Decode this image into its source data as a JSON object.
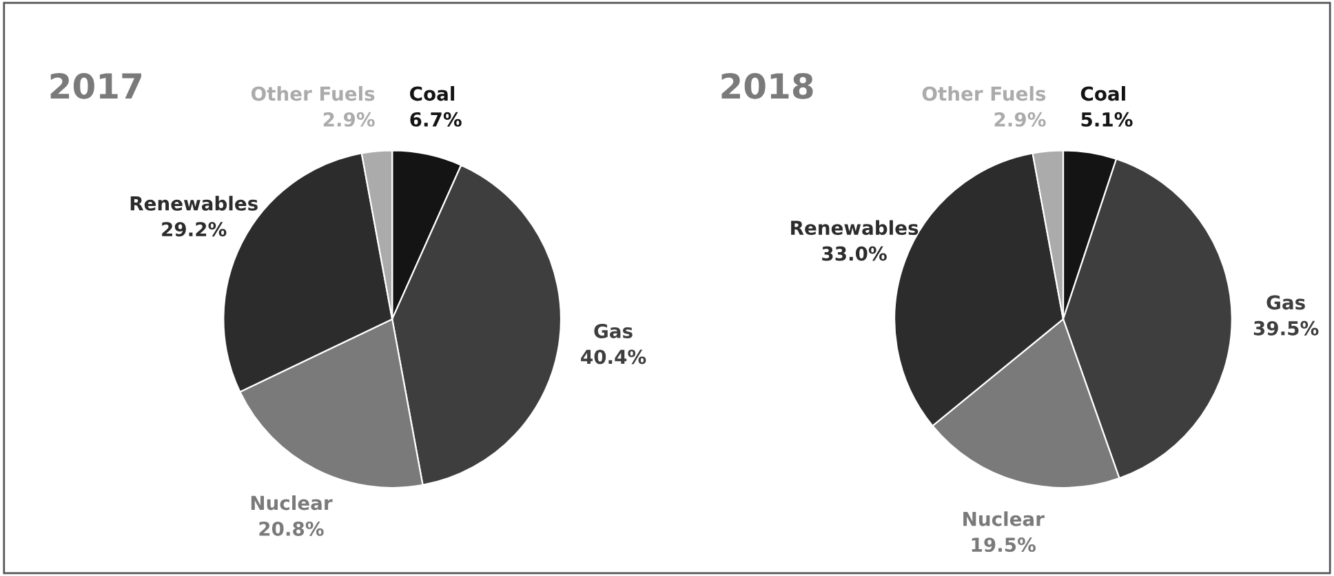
{
  "chart_data": [
    {
      "type": "pie",
      "title": "2017",
      "categories": [
        "Coal",
        "Gas",
        "Nuclear",
        "Renewables",
        "Other Fuels"
      ],
      "values": [
        6.7,
        40.4,
        20.8,
        29.2,
        2.9
      ],
      "value_labels": [
        "6.7%",
        "40.4%",
        "20.8%",
        "29.2%",
        "2.9%"
      ],
      "colors": [
        "#141414",
        "#3e3e3e",
        "#7a7a7a",
        "#2c2c2c",
        "#ababab"
      ]
    },
    {
      "type": "pie",
      "title": "2018",
      "categories": [
        "Coal",
        "Gas",
        "Nuclear",
        "Renewables",
        "Other Fuels"
      ],
      "values": [
        5.1,
        39.5,
        19.5,
        33.0,
        2.9
      ],
      "value_labels": [
        "5.1%",
        "39.5%",
        "19.5%",
        "33.0%",
        "2.9%"
      ],
      "colors": [
        "#141414",
        "#3e3e3e",
        "#7a7a7a",
        "#2c2c2c",
        "#ababab"
      ]
    }
  ]
}
